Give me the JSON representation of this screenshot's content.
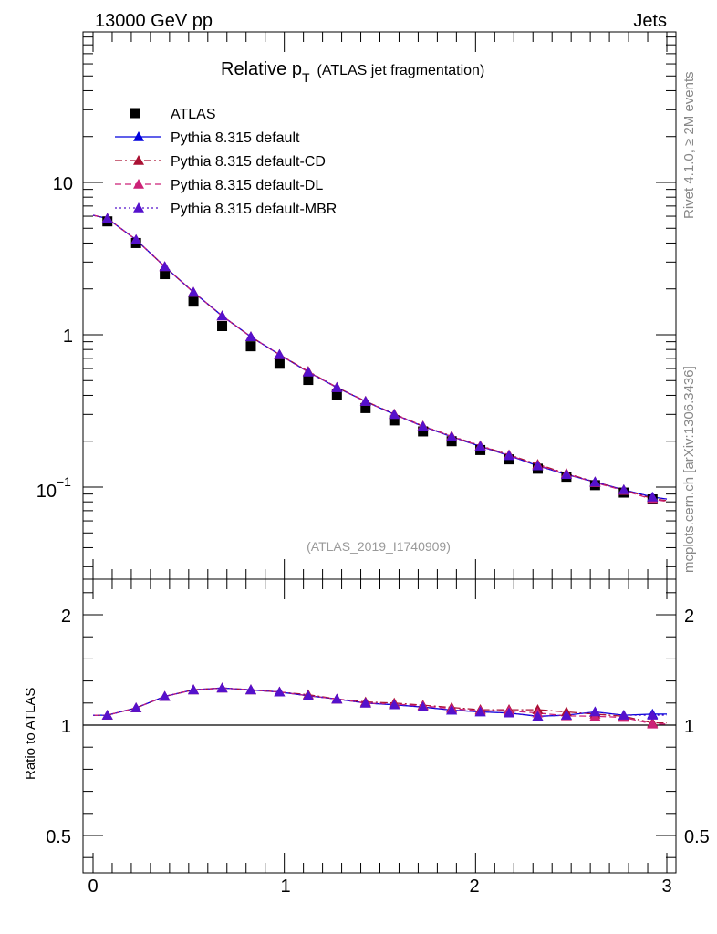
{
  "header": {
    "energy_label": "13000 GeV pp",
    "category_label": "Jets",
    "side_label_top": "Rivet 4.1.0, ≥ 2M events",
    "side_label_bottom": "mcplots.cern.ch [arXiv:1306.3436]"
  },
  "chart_data": [
    {
      "type": "scatter",
      "panel": "main",
      "title": "Relative p",
      "title_sub": "T",
      "title_suffix": "(ATLAS jet fragmentation)",
      "analysis_label": "(ATLAS_2019_I1740909)",
      "yscale": "log",
      "ylim": [
        0.03,
        80
      ],
      "xlim": [
        -0.05,
        3.05
      ],
      "ytick_labels": {
        "ten": "10",
        "one": "1",
        "tenth_base": "10",
        "tenth_exp": "−1"
      },
      "legend_position": "top-left",
      "x": [
        0.075,
        0.225,
        0.375,
        0.525,
        0.675,
        0.825,
        0.975,
        1.125,
        1.275,
        1.425,
        1.575,
        1.725,
        1.875,
        2.025,
        2.175,
        2.325,
        2.475,
        2.625,
        2.775,
        2.925
      ],
      "series": [
        {
          "name": "ATLAS",
          "style": "data",
          "color": "#000000",
          "values": [
            5.55,
            4.0,
            2.5,
            1.65,
            1.14,
            0.84,
            0.645,
            0.505,
            0.405,
            0.33,
            0.274,
            0.232,
            0.2,
            0.175,
            0.152,
            0.132,
            0.117,
            0.103,
            0.092,
            0.083
          ]
        },
        {
          "name": "Pythia 8.315 default",
          "style": "solid",
          "color": "#0000dd",
          "values": [
            5.8,
            4.2,
            2.8,
            1.9,
            1.33,
            0.97,
            0.74,
            0.57,
            0.45,
            0.365,
            0.3,
            0.25,
            0.214,
            0.185,
            0.161,
            0.138,
            0.121,
            0.108,
            0.096,
            0.086
          ]
        },
        {
          "name": "Pythia 8.315 default-CD",
          "style": "dashdot",
          "color": "#aa1133",
          "values": [
            5.8,
            4.2,
            2.8,
            1.9,
            1.33,
            0.97,
            0.74,
            0.575,
            0.452,
            0.366,
            0.302,
            0.252,
            0.216,
            0.187,
            0.163,
            0.141,
            0.123,
            0.108,
            0.096,
            0.084
          ]
        },
        {
          "name": "Pythia 8.315 default-DL",
          "style": "dashed",
          "color": "#cc2277",
          "values": [
            5.8,
            4.2,
            2.8,
            1.9,
            1.33,
            0.97,
            0.74,
            0.57,
            0.45,
            0.365,
            0.3,
            0.251,
            0.215,
            0.186,
            0.162,
            0.139,
            0.122,
            0.107,
            0.095,
            0.083
          ]
        },
        {
          "name": "Pythia 8.315 default-MBR",
          "style": "dotted",
          "color": "#5511cc",
          "values": [
            5.8,
            4.2,
            2.8,
            1.9,
            1.33,
            0.97,
            0.74,
            0.57,
            0.45,
            0.365,
            0.3,
            0.25,
            0.214,
            0.185,
            0.161,
            0.138,
            0.121,
            0.108,
            0.096,
            0.086
          ]
        }
      ]
    },
    {
      "type": "line",
      "panel": "ratio",
      "ylabel": "Ratio to ATLAS",
      "ylim": [
        0.35,
        2.3
      ],
      "ytick_labels": [
        "0.5",
        "1",
        "2"
      ],
      "xtick_labels": [
        "0",
        "1",
        "2",
        "3"
      ],
      "x": [
        0.075,
        0.225,
        0.375,
        0.525,
        0.675,
        0.825,
        0.975,
        1.125,
        1.275,
        1.425,
        1.575,
        1.725,
        1.875,
        2.025,
        2.175,
        2.325,
        2.475,
        2.625,
        2.775,
        2.925
      ],
      "series": [
        {
          "name": "Pythia 8.315 default",
          "style": "solid",
          "color": "#0000dd",
          "values": [
            1.045,
            1.078,
            1.13,
            1.16,
            1.168,
            1.16,
            1.15,
            1.133,
            1.118,
            1.1,
            1.092,
            1.082,
            1.068,
            1.06,
            1.055,
            1.04,
            1.045,
            1.06,
            1.045,
            1.05
          ]
        },
        {
          "name": "Pythia 8.315 default-CD",
          "style": "dashdot",
          "color": "#aa1133",
          "values": [
            1.045,
            1.078,
            1.13,
            1.16,
            1.168,
            1.16,
            1.15,
            1.138,
            1.118,
            1.105,
            1.1,
            1.09,
            1.08,
            1.07,
            1.07,
            1.07,
            1.06,
            1.05,
            1.04,
            1.01
          ]
        },
        {
          "name": "Pythia 8.315 default-DL",
          "style": "dashed",
          "color": "#cc2277",
          "values": [
            1.045,
            1.078,
            1.13,
            1.16,
            1.168,
            1.16,
            1.15,
            1.133,
            1.118,
            1.1,
            1.095,
            1.087,
            1.075,
            1.065,
            1.065,
            1.055,
            1.042,
            1.04,
            1.035,
            1.005
          ]
        },
        {
          "name": "Pythia 8.315 default-MBR",
          "style": "dotted",
          "color": "#5511cc",
          "values": [
            1.045,
            1.078,
            1.13,
            1.16,
            1.168,
            1.16,
            1.15,
            1.133,
            1.118,
            1.1,
            1.092,
            1.082,
            1.068,
            1.06,
            1.055,
            1.04,
            1.045,
            1.06,
            1.045,
            1.045
          ]
        }
      ]
    }
  ]
}
